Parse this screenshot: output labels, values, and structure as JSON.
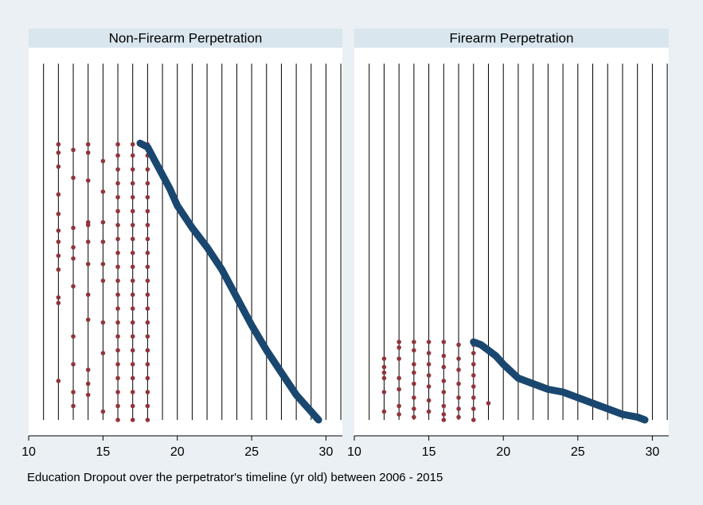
{
  "chart_data": [
    {
      "type": "scatter",
      "title": "Non-Firearm Perpetration",
      "xlim": [
        10,
        31.1
      ],
      "xticks": [
        10,
        15,
        20,
        25,
        30
      ],
      "ylim": [
        0,
        128
      ],
      "xlines": [
        11,
        12,
        13,
        14,
        15,
        16,
        17,
        18,
        19,
        20,
        21,
        22,
        23,
        24,
        25,
        26,
        27,
        28,
        29,
        30,
        31
      ],
      "series": [
        {
          "color": "#90353b",
          "mode": "markers",
          "x": [
            12,
            12,
            12,
            12,
            12,
            12,
            12,
            12,
            12,
            12,
            12,
            12,
            13,
            13,
            13,
            13,
            13,
            13,
            13,
            13,
            13,
            13,
            14,
            14,
            14,
            14,
            14,
            14,
            14,
            14,
            14,
            14,
            14,
            14,
            15,
            15,
            15,
            15,
            15,
            15,
            15,
            15,
            15,
            16,
            16,
            16,
            16,
            16,
            16,
            16,
            16,
            16,
            16,
            16,
            16,
            16,
            16,
            16,
            16,
            16,
            16,
            16,
            16,
            16,
            17,
            17,
            17,
            17,
            17,
            17,
            17,
            17,
            17,
            17,
            17,
            17,
            17,
            17,
            17,
            17,
            17,
            17,
            17,
            17,
            17,
            18,
            18,
            18,
            18,
            18,
            18,
            18,
            18,
            18,
            18,
            18,
            18,
            18,
            18,
            18,
            18,
            18,
            18,
            18,
            18,
            18
          ],
          "values": [
            99,
            96,
            91,
            81,
            74,
            68,
            64,
            59,
            54,
            44,
            42,
            14,
            97,
            87,
            69,
            62,
            58,
            48,
            30,
            20,
            10,
            5,
            99,
            96,
            86,
            71,
            70,
            64,
            56,
            45,
            36,
            18,
            13,
            9,
            93,
            82,
            71,
            64,
            56,
            50,
            35,
            24,
            3,
            0,
            5,
            10,
            15,
            20,
            25,
            30,
            35,
            40,
            45,
            50,
            55,
            60,
            65,
            70,
            75,
            80,
            85,
            90,
            95,
            99,
            0,
            5,
            10,
            15,
            20,
            25,
            30,
            35,
            40,
            45,
            50,
            55,
            60,
            65,
            70,
            75,
            80,
            85,
            90,
            95,
            99,
            0,
            5,
            10,
            15,
            20,
            25,
            30,
            35,
            40,
            45,
            50,
            55,
            60,
            65,
            70,
            75,
            80,
            85,
            90,
            95,
            99
          ]
        },
        {
          "color": "#1a476f",
          "mode": "line",
          "x": [
            17.5,
            18,
            18.5,
            19,
            19.5,
            20,
            21,
            22,
            23,
            24,
            25,
            26,
            27,
            28,
            29,
            29.5
          ],
          "values": [
            99.4,
            98,
            93,
            88,
            83,
            77,
            69,
            62,
            54,
            44,
            34,
            25,
            17,
            9,
            3,
            0
          ]
        }
      ]
    },
    {
      "type": "scatter",
      "title": "Firearm Perpetration",
      "xlim": [
        10,
        31.1
      ],
      "xticks": [
        10,
        15,
        20,
        25,
        30
      ],
      "ylim": [
        0,
        128
      ],
      "xlines": [
        11,
        12,
        13,
        14,
        15,
        16,
        17,
        18,
        19,
        20,
        21,
        22,
        23,
        24,
        25,
        26,
        27,
        28,
        29,
        30,
        31
      ],
      "series": [
        {
          "color": "#90353b",
          "mode": "markers",
          "x": [
            12,
            12,
            12,
            12,
            12,
            12,
            13,
            13,
            13,
            13,
            13,
            13,
            13,
            14,
            14,
            14,
            14,
            14,
            14,
            14,
            14,
            15,
            15,
            15,
            15,
            15,
            15,
            15,
            16,
            16,
            16,
            16,
            16,
            16,
            16,
            16,
            17,
            17,
            17,
            17,
            17,
            17,
            17,
            18,
            18,
            18,
            18,
            18,
            18,
            18,
            18,
            19
          ],
          "values": [
            22,
            19,
            17,
            15,
            10,
            3,
            28,
            26,
            22,
            15,
            11,
            5,
            2,
            28,
            25,
            20,
            17,
            13,
            8,
            4,
            1,
            28,
            24,
            20,
            16,
            12,
            7,
            3,
            28,
            23,
            19,
            14,
            10,
            5,
            2,
            0,
            27,
            22,
            18,
            13,
            8,
            4,
            1,
            27,
            24,
            20,
            16,
            12,
            8,
            4,
            0,
            6
          ]
        },
        {
          "color": "#1a476f",
          "mode": "line",
          "x": [
            18,
            18.5,
            19,
            19.5,
            20,
            21,
            22,
            23,
            24,
            25,
            26,
            27,
            28,
            29,
            29.5
          ],
          "values": [
            28,
            27,
            25,
            23,
            20,
            15,
            13,
            11,
            10,
            8,
            6,
            4,
            2,
            1,
            0
          ]
        }
      ]
    }
  ],
  "xlabel": "Education Dropout over the perpetrator's timeline (yr old) between 2006 - 2015"
}
